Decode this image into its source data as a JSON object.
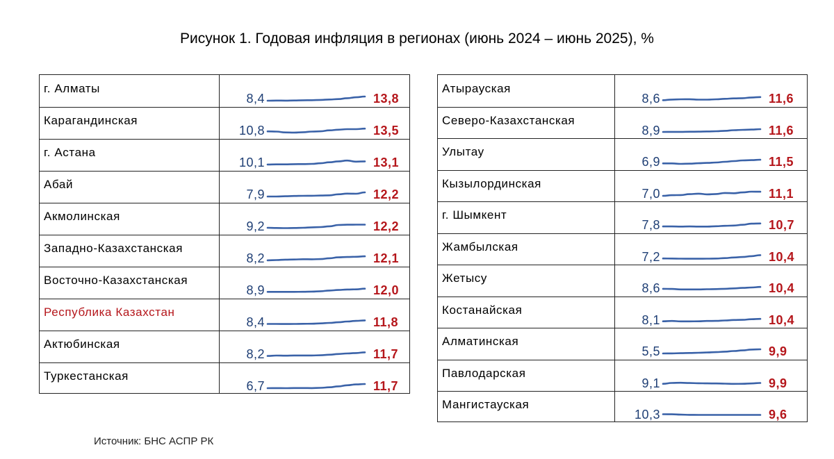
{
  "title": "Рисунок 1. Годовая инфляция в регионах (июнь 2024 – июнь 2025), %",
  "source": "Источник: БНС АСПР РК",
  "chart_data": {
    "type": "table",
    "title": "Рисунок 1. Годовая инфляция в регионах (июнь 2024 – июнь 2025), %",
    "colors": {
      "start": "#1f3f75",
      "end": "#b5161b",
      "line": "#3a62a8",
      "highlight": "#b5161b"
    },
    "panels": [
      {
        "rows": [
          {
            "region": "г. Алматы",
            "start": "8,4",
            "end": "13,8",
            "series": [
              8.4,
              8.6,
              8.5,
              8.7,
              8.9,
              9.0,
              9.4,
              9.9,
              10.5,
              11.6,
              12.8,
              13.8
            ]
          },
          {
            "region": "Карагандинская",
            "start": "10,8",
            "end": "13,5",
            "series": [
              10.8,
              10.6,
              9.8,
              9.7,
              10.0,
              10.6,
              10.9,
              11.8,
              12.4,
              12.9,
              12.9,
              13.5
            ]
          },
          {
            "region": "г. Астана",
            "start": "10,1",
            "end": "13,1",
            "series": [
              10.1,
              10.2,
              10.2,
              10.4,
              10.5,
              10.7,
              11.3,
              12.2,
              13.1,
              13.9,
              12.8,
              13.1
            ]
          },
          {
            "region": "Абай",
            "start": "7,9",
            "end": "12,2",
            "series": [
              7.9,
              7.9,
              8.2,
              8.5,
              8.6,
              8.7,
              8.9,
              9.1,
              10.2,
              10.9,
              10.8,
              12.2
            ]
          },
          {
            "region": "Акмолинская",
            "start": "9,2",
            "end": "12,2",
            "series": [
              9.2,
              9.0,
              8.8,
              9.0,
              9.2,
              9.6,
              9.8,
              10.6,
              11.8,
              12.1,
              12.2,
              12.2
            ]
          },
          {
            "region": "Западно-Казахстанская",
            "start": "8,2",
            "end": "12,1",
            "series": [
              8.2,
              8.5,
              8.9,
              9.0,
              9.3,
              9.2,
              9.4,
              10.2,
              11.1,
              11.4,
              11.6,
              12.1
            ]
          },
          {
            "region": "Восточно-Казахстанская",
            "start": "8,9",
            "end": "12,0",
            "series": [
              8.9,
              8.9,
              8.9,
              8.9,
              9.0,
              9.2,
              9.5,
              10.2,
              10.7,
              11.2,
              11.3,
              12.0
            ]
          },
          {
            "region": "Республика Казахстан",
            "start": "8,4",
            "end": "11,8",
            "highlight": true,
            "series": [
              8.4,
              8.4,
              8.3,
              8.4,
              8.5,
              8.6,
              8.9,
              9.4,
              10.0,
              10.7,
              11.3,
              11.8
            ]
          },
          {
            "region": "Актюбинская",
            "start": "8,2",
            "end": "11,7",
            "series": [
              8.2,
              8.6,
              8.5,
              8.7,
              8.7,
              8.7,
              8.9,
              9.4,
              10.1,
              10.6,
              11.0,
              11.7
            ]
          },
          {
            "region": "Туркестанская",
            "start": "6,7",
            "end": "11,7",
            "series": [
              6.7,
              6.8,
              6.7,
              6.9,
              6.9,
              6.8,
              7.1,
              7.8,
              8.9,
              10.2,
              11.2,
              11.7
            ]
          }
        ]
      },
      {
        "rows": [
          {
            "region": "Атырауская",
            "start": "8,6",
            "end": "11,6",
            "series": [
              8.6,
              9.2,
              9.4,
              9.5,
              9.1,
              9.1,
              9.4,
              9.9,
              10.3,
              10.5,
              11.2,
              11.6
            ]
          },
          {
            "region": "Северо-Казахстанская",
            "start": "8,9",
            "end": "11,6",
            "series": [
              8.9,
              9.0,
              9.0,
              9.1,
              9.2,
              9.4,
              9.6,
              10.0,
              10.6,
              10.9,
              11.2,
              11.6
            ]
          },
          {
            "region": "Улытау",
            "start": "6,9",
            "end": "11,5",
            "series": [
              6.9,
              6.9,
              6.3,
              6.6,
              7.1,
              7.5,
              8.0,
              8.9,
              9.8,
              10.6,
              11.0,
              11.5
            ]
          },
          {
            "region": "Кызылординская",
            "start": "7,0",
            "end": "11,1",
            "series": [
              7.0,
              7.6,
              7.8,
              8.7,
              9.2,
              8.5,
              8.8,
              9.9,
              9.6,
              10.4,
              11.2,
              11.1
            ]
          },
          {
            "region": "г. Шымкент",
            "start": "7,8",
            "end": "10,7",
            "series": [
              7.8,
              7.8,
              7.7,
              7.8,
              7.7,
              7.7,
              8.0,
              8.4,
              8.7,
              9.4,
              10.5,
              10.7
            ]
          },
          {
            "region": "Жамбылская",
            "start": "7,2",
            "end": "10,4",
            "series": [
              7.2,
              7.1,
              7.0,
              6.9,
              6.9,
              7.0,
              7.1,
              7.5,
              8.1,
              8.6,
              9.4,
              10.4
            ]
          },
          {
            "region": "Жетысу",
            "start": "8,6",
            "end": "10,4",
            "series": [
              8.6,
              8.5,
              8.0,
              8.0,
              8.0,
              8.2,
              8.3,
              8.6,
              9.0,
              9.5,
              9.9,
              10.4
            ]
          },
          {
            "region": "Костанайская",
            "start": "8,1",
            "end": "10,4",
            "series": [
              8.1,
              8.4,
              8.0,
              8.0,
              8.1,
              8.4,
              8.5,
              8.9,
              9.3,
              9.5,
              10.1,
              10.4
            ]
          },
          {
            "region": "Алматинская",
            "start": "5,5",
            "end": "9,9",
            "series": [
              5.5,
              5.6,
              5.8,
              6.0,
              6.2,
              6.5,
              6.9,
              7.4,
              8.1,
              8.7,
              9.6,
              9.9
            ]
          },
          {
            "region": "Павлодарская",
            "start": "9,1",
            "end": "9,9",
            "series": [
              9.1,
              9.9,
              10.1,
              9.8,
              9.6,
              9.5,
              9.4,
              9.2,
              9.0,
              9.1,
              9.4,
              9.9
            ]
          },
          {
            "region": "Мангистауская",
            "start": "10,3",
            "end": "9,6",
            "series": [
              10.3,
              10.2,
              9.9,
              9.7,
              9.6,
              9.6,
              9.6,
              9.6,
              9.6,
              9.6,
              9.6,
              9.6
            ]
          }
        ]
      }
    ]
  }
}
